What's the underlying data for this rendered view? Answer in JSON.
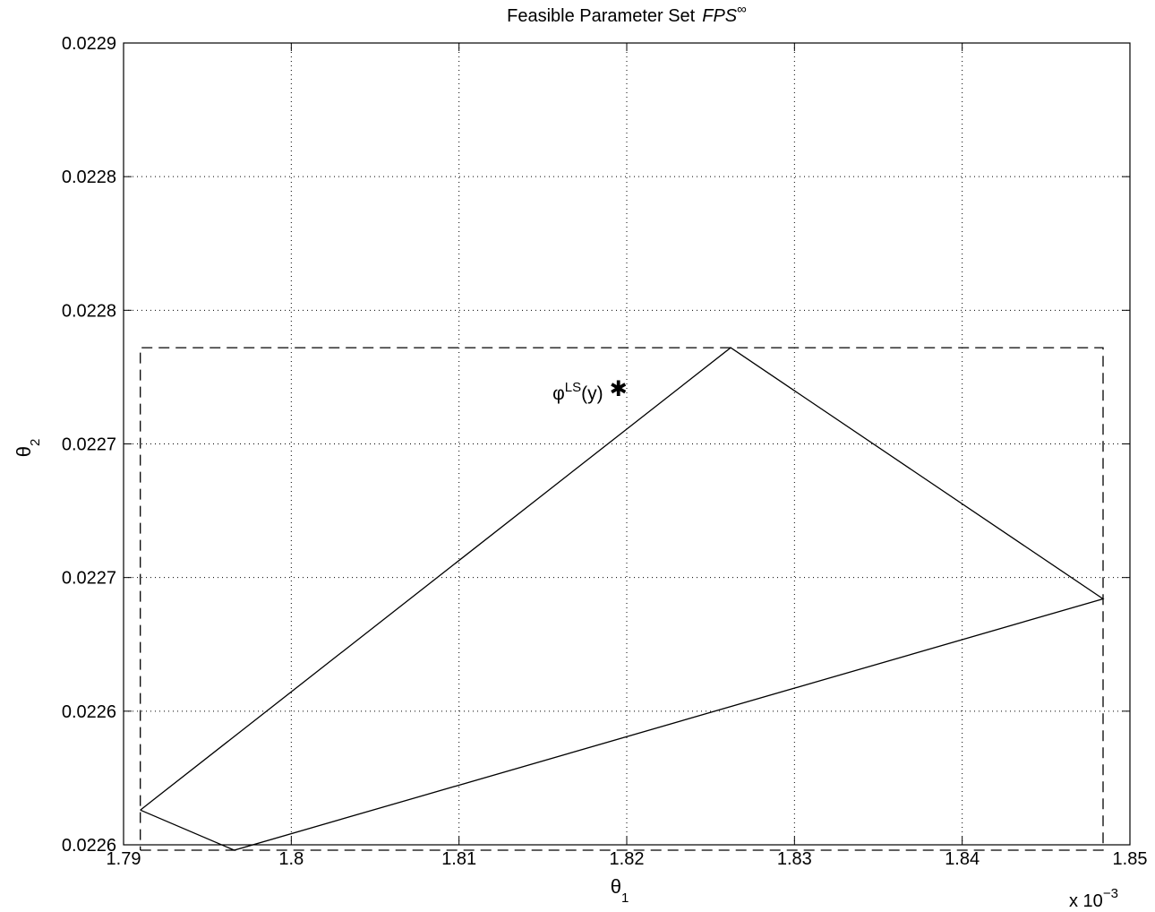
{
  "chart_data": {
    "type": "line",
    "title": {
      "prefix": "Feasible Parameter Set",
      "italic": "FPS",
      "superscript": "∞"
    },
    "xlabel": {
      "symbol": "θ",
      "subscript": "1"
    },
    "ylabel": {
      "symbol": "θ",
      "subscript": "2"
    },
    "xlim": [
      1.79,
      1.85
    ],
    "ylim": [
      0.0226,
      0.0229
    ],
    "x_ticks": [
      1.79,
      1.8,
      1.81,
      1.82,
      1.83,
      1.84,
      1.85
    ],
    "x_tick_labels": [
      "1.79",
      "1.8",
      "1.81",
      "1.82",
      "1.83",
      "1.84",
      "1.85"
    ],
    "y_ticks": [
      0.0226,
      0.02265,
      0.0227,
      0.02275,
      0.0228,
      0.02285,
      0.0229
    ],
    "y_tick_labels": [
      "0.0226",
      "0.0226",
      "0.0227",
      "0.0227",
      "0.0228",
      "0.0228",
      "0.0229"
    ],
    "x_multiplier": {
      "text": "x 10",
      "exponent": "−3"
    },
    "grid": true,
    "series": [
      {
        "style": "solid",
        "x": [
          1.791,
          1.7966,
          1.8484,
          1.8262,
          1.791
        ],
        "y": [
          0.022613,
          0.022598,
          0.022692,
          0.022786,
          0.022613
        ]
      },
      {
        "style": "dashed",
        "x": [
          1.791,
          1.8484,
          1.8484,
          1.791,
          1.791
        ],
        "y": [
          0.022598,
          0.022598,
          0.022786,
          0.022786,
          0.022598
        ]
      }
    ],
    "annotations": [
      {
        "marker": "✱",
        "x": 1.8195,
        "y": 0.022771,
        "label": {
          "base": "φ",
          "superscript": "LS",
          "suffix": "(y)"
        }
      }
    ]
  }
}
